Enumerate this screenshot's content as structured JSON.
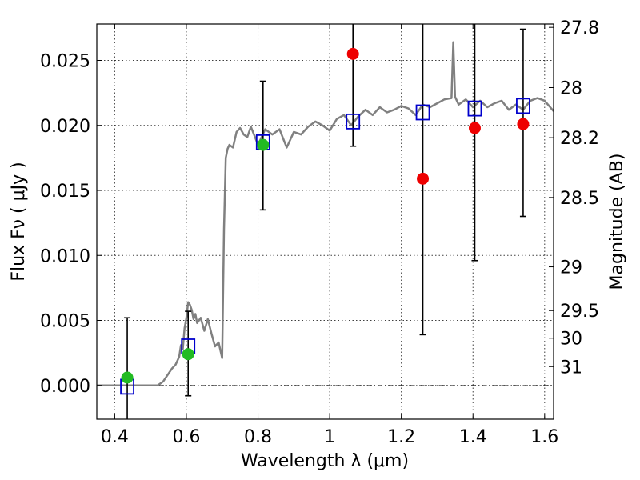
{
  "chart_data": {
    "type": "scatter",
    "title": "",
    "xlabel": "Wavelength  λ (μm)",
    "ylabel": "Flux  Fν  ( μJy )",
    "y2label": "Magnitude (AB)",
    "xlim": [
      0.35,
      1.625
    ],
    "ylim": [
      -0.0026,
      0.0278
    ],
    "x_ticks": [
      0.4,
      0.6,
      0.8,
      1.0,
      1.2,
      1.4,
      1.6
    ],
    "x_tick_labels": [
      "0.4",
      "0.6",
      "0.8",
      "1",
      "1.2",
      "1.4",
      "1.6"
    ],
    "y_ticks": [
      0.0,
      0.005,
      0.01,
      0.015,
      0.02,
      0.025
    ],
    "y_tick_labels": [
      "0.000",
      "0.005",
      "0.010",
      "0.015",
      "0.020",
      "0.025"
    ],
    "y2_tick_labels": [
      "27.8",
      "28",
      "28.2",
      "28.5",
      "29",
      "29.5",
      "30",
      "31"
    ],
    "grid": true,
    "colors": {
      "model": "#808080",
      "model_photometry": "#0000cc",
      "detections_green": "#22bb22",
      "detections_red": "#ee0000",
      "errorbar": "#000000"
    },
    "series": [
      {
        "kind": "line",
        "x": [
          0.35,
          0.52,
          0.535,
          0.55,
          0.56,
          0.57,
          0.58,
          0.585,
          0.59,
          0.595,
          0.6,
          0.605,
          0.61,
          0.615,
          0.62,
          0.625,
          0.63,
          0.64,
          0.65,
          0.66,
          0.67,
          0.68,
          0.69,
          0.7,
          0.705,
          0.71,
          0.715,
          0.72,
          0.73,
          0.74,
          0.75,
          0.76,
          0.77,
          0.78,
          0.79,
          0.8,
          0.82,
          0.84,
          0.86,
          0.88,
          0.9,
          0.92,
          0.94,
          0.96,
          0.98,
          1.0,
          1.02,
          1.04,
          1.06,
          1.08,
          1.1,
          1.12,
          1.14,
          1.16,
          1.18,
          1.2,
          1.22,
          1.24,
          1.26,
          1.28,
          1.3,
          1.32,
          1.34,
          1.345,
          1.35,
          1.36,
          1.38,
          1.4,
          1.42,
          1.44,
          1.46,
          1.48,
          1.5,
          1.52,
          1.54,
          1.56,
          1.58,
          1.6,
          1.625
        ],
        "y": [
          0.0,
          0.0,
          0.0003,
          0.0009,
          0.0013,
          0.0016,
          0.0022,
          0.0031,
          0.0028,
          0.0044,
          0.0052,
          0.0064,
          0.0062,
          0.0058,
          0.0051,
          0.0055,
          0.0048,
          0.0052,
          0.0042,
          0.0051,
          0.004,
          0.003,
          0.0033,
          0.0021,
          0.012,
          0.0175,
          0.0182,
          0.0185,
          0.0183,
          0.0195,
          0.0198,
          0.0193,
          0.0191,
          0.0199,
          0.0192,
          0.0185,
          0.0197,
          0.0193,
          0.0197,
          0.0183,
          0.0195,
          0.0193,
          0.0199,
          0.0203,
          0.02,
          0.0196,
          0.0205,
          0.0208,
          0.02,
          0.0207,
          0.0212,
          0.0208,
          0.0214,
          0.021,
          0.0212,
          0.0215,
          0.0213,
          0.0208,
          0.0216,
          0.0214,
          0.0217,
          0.022,
          0.0221,
          0.0264,
          0.0222,
          0.0216,
          0.022,
          0.0214,
          0.0219,
          0.0214,
          0.0217,
          0.0219,
          0.0212,
          0.0216,
          0.0212,
          0.0219,
          0.0221,
          0.0219,
          0.0211
        ]
      },
      {
        "kind": "model_photometry",
        "x": [
          0.435,
          0.605,
          0.814,
          1.065,
          1.26,
          1.405,
          1.54
        ],
        "y": [
          -0.0001,
          0.003,
          0.0187,
          0.0203,
          0.021,
          0.0213,
          0.0215
        ]
      },
      {
        "kind": "detections_green",
        "x": [
          0.435,
          0.605,
          0.814
        ],
        "y": [
          0.0006,
          0.0024,
          0.0185
        ],
        "yerr_low": [
          -0.0026,
          -0.0008,
          0.0135
        ],
        "yerr_high": [
          0.0052,
          0.0057,
          0.0234
        ]
      },
      {
        "kind": "detections_red",
        "x": [
          1.065,
          1.26,
          1.405,
          1.54
        ],
        "y": [
          0.0255,
          0.0159,
          0.0198,
          0.0201
        ],
        "yerr_low": [
          0.0184,
          0.0039,
          0.0096,
          0.013
        ],
        "yerr_high": [
          0.0278,
          0.0278,
          0.0278,
          0.0274
        ]
      }
    ]
  }
}
